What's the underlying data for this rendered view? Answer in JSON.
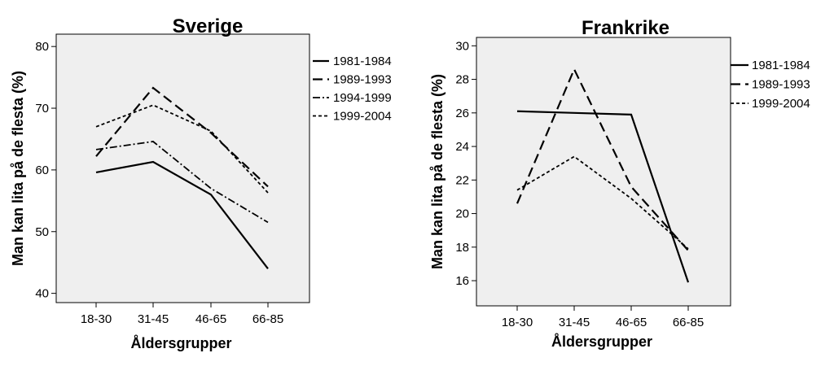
{
  "chart_data": [
    {
      "type": "line",
      "title": "Sverige",
      "xlabel": "Åldersgrupper",
      "ylabel": "Man kan lita på de flesta (%)",
      "categories": [
        "18-30",
        "31-45",
        "46-65",
        "66-85"
      ],
      "ylim": [
        38.5,
        82
      ],
      "yticks": [
        40,
        50,
        60,
        70,
        80
      ],
      "ytick_labels": [
        "40",
        "50",
        "60",
        "70",
        "80"
      ],
      "grid": false,
      "legend_position": "right",
      "series": [
        {
          "name": "1981-1984",
          "dash": "solid",
          "values": [
            59.6,
            61.3,
            56.0,
            44.0
          ]
        },
        {
          "name": "1989-1993",
          "dash": "long-dash",
          "values": [
            62.2,
            73.3,
            66.0,
            57.3
          ]
        },
        {
          "name": "1994-1999",
          "dash": "dash-dot",
          "values": [
            63.3,
            64.6,
            57.0,
            51.5
          ]
        },
        {
          "name": "1999-2004",
          "dash": "short-dash",
          "values": [
            67.0,
            70.5,
            66.3,
            56.3
          ]
        }
      ]
    },
    {
      "type": "line",
      "title": "Frankrike",
      "xlabel": "Åldersgrupper",
      "ylabel": "Man kan lita på de flesta (%)",
      "categories": [
        "18-30",
        "31-45",
        "46-65",
        "66-85"
      ],
      "ylim": [
        14.5,
        30.5
      ],
      "yticks": [
        16,
        18,
        20,
        22,
        24,
        26,
        28,
        30
      ],
      "ytick_labels": [
        "16",
        "18",
        "20",
        "22",
        "24",
        "26",
        "28",
        "30"
      ],
      "grid": false,
      "legend_position": "right",
      "series": [
        {
          "name": "1981-1984",
          "dash": "solid",
          "values": [
            26.1,
            26.0,
            25.9,
            15.9
          ]
        },
        {
          "name": "1989-1993",
          "dash": "long-dash",
          "values": [
            20.6,
            28.6,
            21.6,
            17.8
          ]
        },
        {
          "name": "1999-2004",
          "dash": "short-dash",
          "values": [
            21.4,
            23.4,
            20.9,
            17.9
          ]
        }
      ]
    }
  ]
}
